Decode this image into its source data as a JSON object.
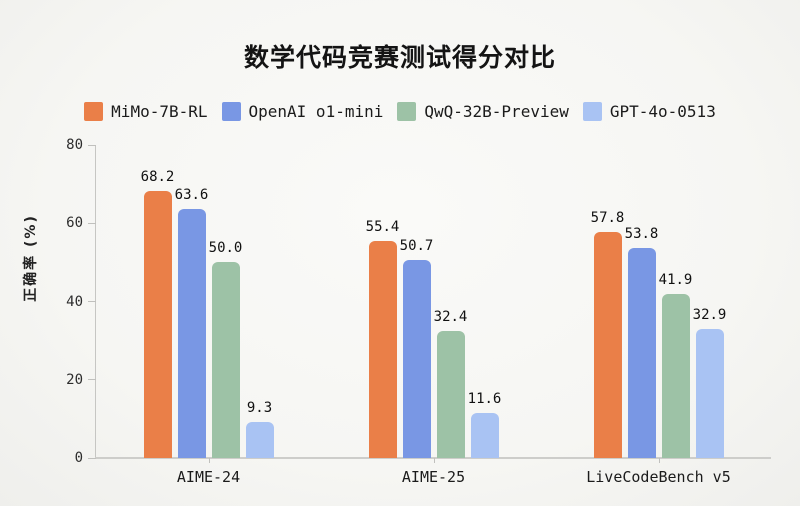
{
  "chart_data": {
    "type": "bar",
    "title": "数学代码竞赛测试得分对比",
    "xlabel": "",
    "ylabel": "正确率 (%)",
    "ylim": [
      0,
      80
    ],
    "yticks": [
      0,
      20,
      40,
      60,
      80
    ],
    "grid": false,
    "legend_position": "top",
    "value_labels": true,
    "categories": [
      "AIME-24",
      "AIME-25",
      "LiveCodeBench v5"
    ],
    "series": [
      {
        "name": "MiMo-7B-RL",
        "color": "#ea7f48",
        "values": [
          68.2,
          55.4,
          57.8
        ]
      },
      {
        "name": "OpenAI o1-mini",
        "color": "#7997e4",
        "values": [
          63.6,
          50.7,
          53.8
        ]
      },
      {
        "name": "QwQ-32B-Preview",
        "color": "#9dc2a6",
        "values": [
          50.0,
          32.4,
          41.9
        ]
      },
      {
        "name": "GPT-4o-0513",
        "color": "#a9c3f3",
        "values": [
          9.3,
          11.6,
          32.9
        ]
      }
    ]
  },
  "style_colors": {
    "background": "#f6f6f3",
    "axis_line": "#cdcdca",
    "tick": "#c0c0bd",
    "text": "#1a1a1a"
  }
}
